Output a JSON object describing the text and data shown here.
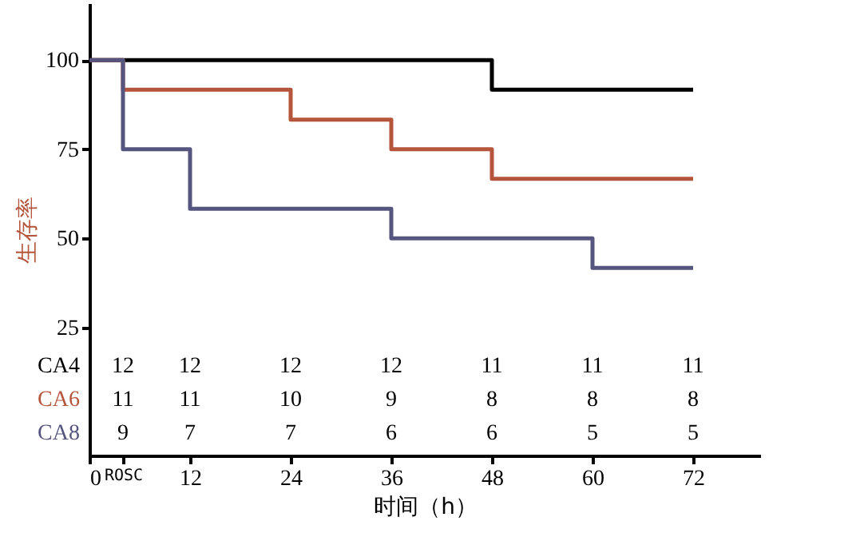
{
  "chart_data": {
    "type": "step",
    "xlabel": "时间（h）",
    "ylabel": "生存率",
    "xlim": [
      0,
      80
    ],
    "ylim": [
      -11,
      116
    ],
    "xticks": [
      0,
      {
        "value": 4,
        "label": "ROSC"
      },
      12,
      24,
      36,
      48,
      60,
      72
    ],
    "yticks": [
      25,
      50,
      75,
      100
    ],
    "grid": false,
    "legend": false,
    "marker": "none",
    "line_style": "solid",
    "series": [
      {
        "name": "CA4",
        "color": "#000000",
        "x": [
          0,
          48,
          72
        ],
        "values": [
          100,
          91.7,
          91.7
        ]
      },
      {
        "name": "CA6",
        "color": "#b5553c",
        "x": [
          0,
          4,
          24,
          36,
          48,
          72
        ],
        "values": [
          100,
          91.7,
          83.3,
          75,
          66.7,
          66.7
        ]
      },
      {
        "name": "CA8",
        "color": "#55557f",
        "x": [
          0,
          4,
          12,
          36,
          60,
          72
        ],
        "values": [
          100,
          75,
          58.3,
          50,
          41.7,
          41.7
        ]
      }
    ],
    "annotations": [
      "12",
      "12",
      "12",
      "12",
      "11",
      "11",
      "11",
      "11",
      "11",
      "10",
      "9",
      "8",
      "8",
      "8",
      "9",
      "7",
      "7",
      "6",
      "6",
      "5",
      "5"
    ]
  }
}
